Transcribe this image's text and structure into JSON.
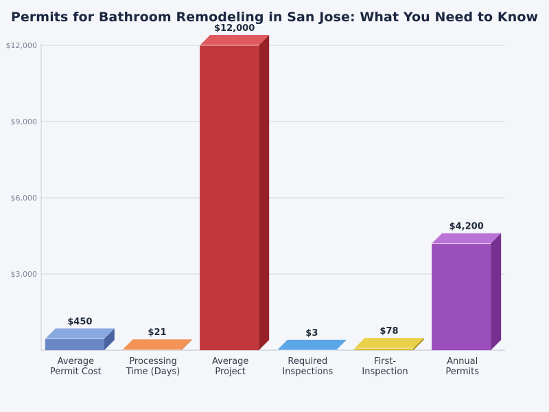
{
  "chart_data": {
    "type": "bar",
    "title": "Permits for Bathroom Remodeling in San Jose: What You Need to Know",
    "xlabel": "",
    "ylabel": "",
    "ylim": [
      0,
      12000
    ],
    "y_ticks": [
      {
        "value": 3000,
        "label": "$3,000"
      },
      {
        "value": 6000,
        "label": "$6,000"
      },
      {
        "value": 9000,
        "label": "$9,000"
      },
      {
        "value": 12000,
        "label": "$12,000"
      }
    ],
    "grid": true,
    "categories": [
      [
        "Average",
        "Permit Cost"
      ],
      [
        "Processing",
        "Time (Days)"
      ],
      [
        "Average",
        "Project"
      ],
      [
        "Required",
        "Inspections"
      ],
      [
        "First-",
        "Inspection"
      ],
      [
        "Annual",
        "Permits"
      ]
    ],
    "values": [
      450,
      21,
      12000,
      3,
      78,
      4200
    ],
    "data_labels": [
      "$450",
      "$21",
      "$12,000",
      "$3",
      "$78",
      "$4,200"
    ],
    "colors": [
      {
        "front": "#6a86c4",
        "top": "#8aa8e0",
        "side": "#4a63a0"
      },
      {
        "front": "#e47a40",
        "top": "#f39456",
        "side": "#b8582a"
      },
      {
        "front": "#c2373d",
        "top": "#df5a5f",
        "side": "#962227"
      },
      {
        "front": "#3c8fd6",
        "top": "#5aa6e6",
        "side": "#2567a8"
      },
      {
        "front": "#ddbf2c",
        "top": "#ebd04a",
        "side": "#a9901b"
      },
      {
        "front": "#9b4fbd",
        "top": "#ba74d8",
        "side": "#76308f"
      }
    ]
  }
}
